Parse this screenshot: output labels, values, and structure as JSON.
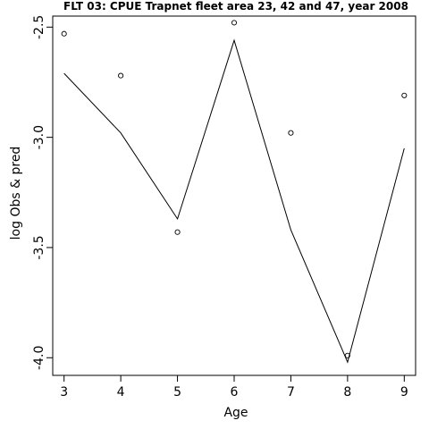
{
  "chart_data": {
    "type": "line",
    "title": "FLT 03: CPUE Trapnet fleet area 23, 42 and 47, year 2008",
    "xlabel": "Age",
    "ylabel": "log Obs & pred",
    "xlim": [
      2.8,
      9.2
    ],
    "ylim": [
      -4.08,
      -2.45
    ],
    "x_ticks": [
      3,
      4,
      5,
      6,
      7,
      8,
      9
    ],
    "y_ticks": [
      -4.0,
      -3.5,
      -3.0,
      -2.5
    ],
    "y_tick_labels": [
      "-4.0",
      "-3.5",
      "-3.0",
      "-2.5"
    ],
    "grid": false,
    "legend": "none",
    "series": [
      {
        "kind": "points",
        "x": [
          3,
          4,
          5,
          6,
          7,
          8,
          9
        ],
        "values": [
          -2.53,
          -2.72,
          -3.43,
          -2.48,
          -2.98,
          -3.99,
          -2.81
        ]
      },
      {
        "kind": "line",
        "x": [
          3,
          4,
          5,
          6,
          7,
          8,
          9
        ],
        "values": [
          -2.71,
          -2.98,
          -3.37,
          -2.56,
          -3.42,
          -4.02,
          -3.05
        ]
      }
    ],
    "colors": {
      "line": "#000000",
      "points": "#000000"
    }
  }
}
